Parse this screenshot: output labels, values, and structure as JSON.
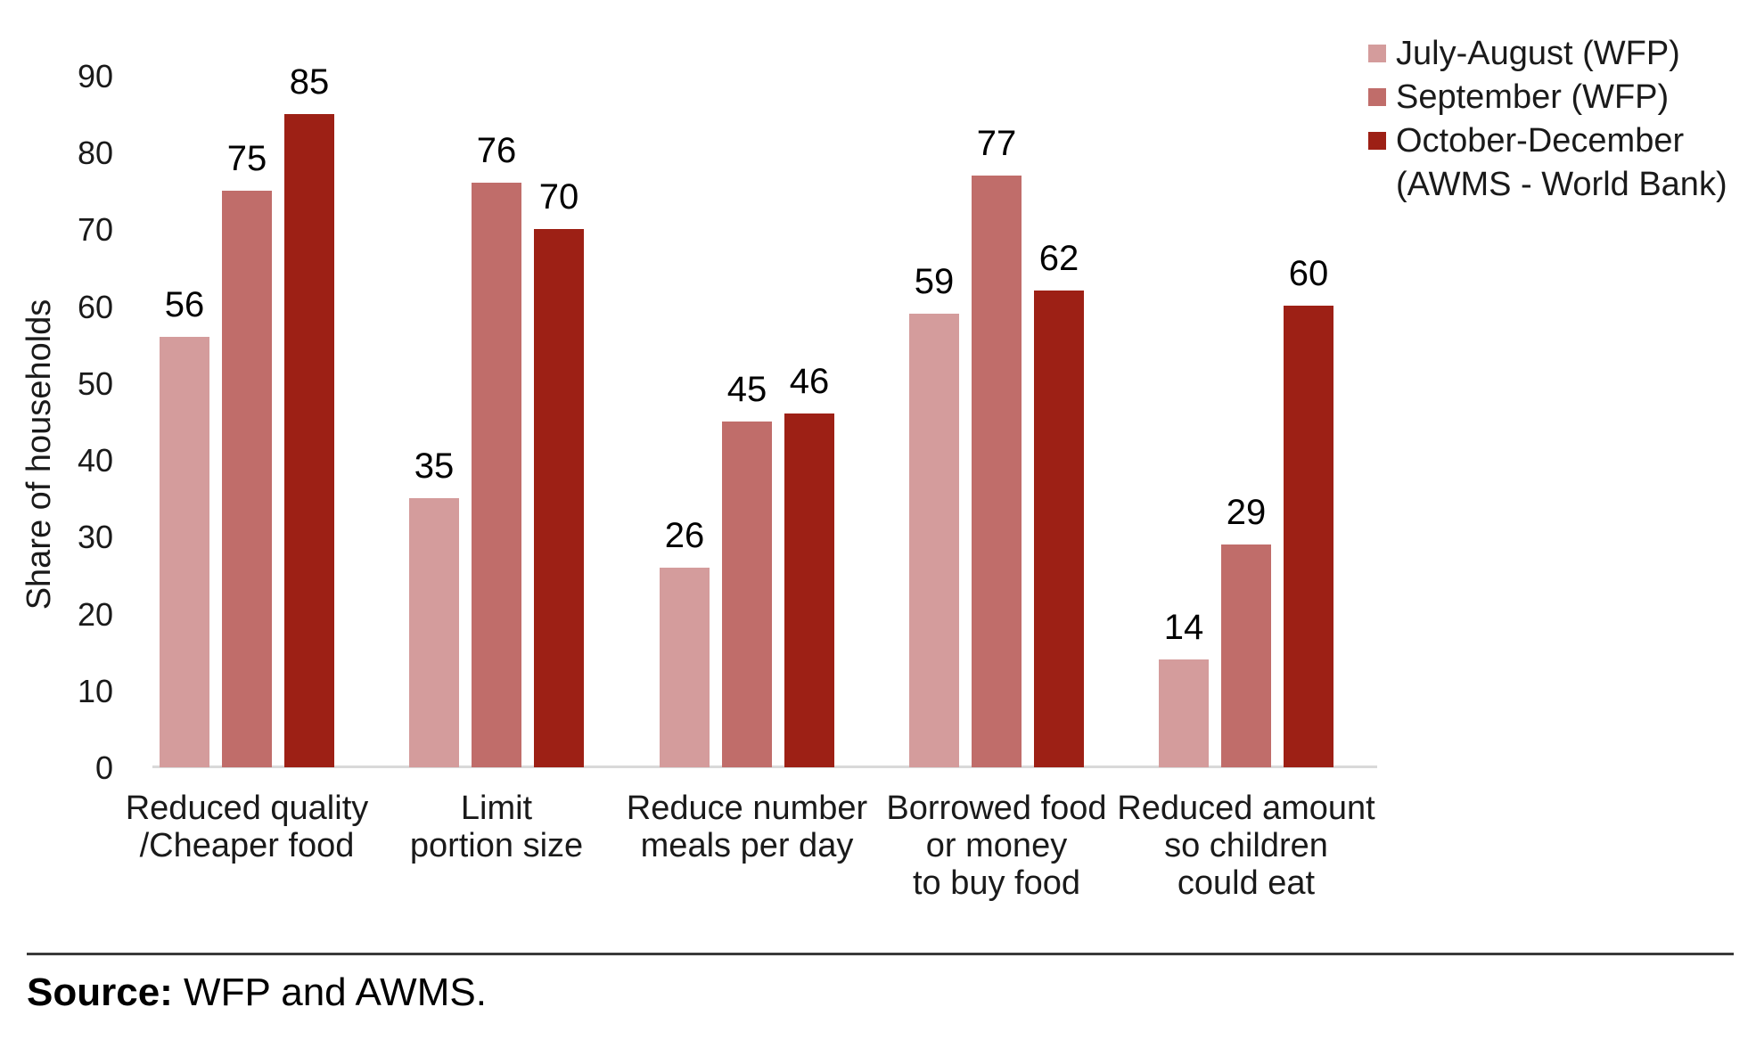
{
  "chart_data": {
    "type": "bar",
    "title": "",
    "ylabel": "Share of households",
    "categories": [
      "Reduced quality\n/Cheaper food",
      "Limit\nportion size",
      "Reduce number\nmeals per day",
      "Borrowed food\nor money\nto buy food",
      "Reduced amount\nso children\ncould eat"
    ],
    "series": [
      {
        "name": "July-August (WFP)",
        "color": "#d49c9c",
        "values": [
          56,
          35,
          26,
          59,
          14
        ]
      },
      {
        "name": "September (WFP)",
        "color": "#c06d6a",
        "values": [
          75,
          76,
          45,
          77,
          29
        ]
      },
      {
        "name": "October-December\n(AWMS - World Bank)",
        "color": "#9d2015",
        "values": [
          85,
          70,
          46,
          62,
          60
        ]
      }
    ],
    "ylim": [
      0,
      90
    ],
    "yticks": [
      0,
      10,
      20,
      30,
      40,
      50,
      60,
      70,
      80,
      90
    ],
    "grid": false,
    "legend_position": "top-right",
    "data_labels": true,
    "axis_line_color": "#d9d9d9"
  },
  "source": {
    "bold": "Source:",
    "text": " WFP and AWMS."
  }
}
